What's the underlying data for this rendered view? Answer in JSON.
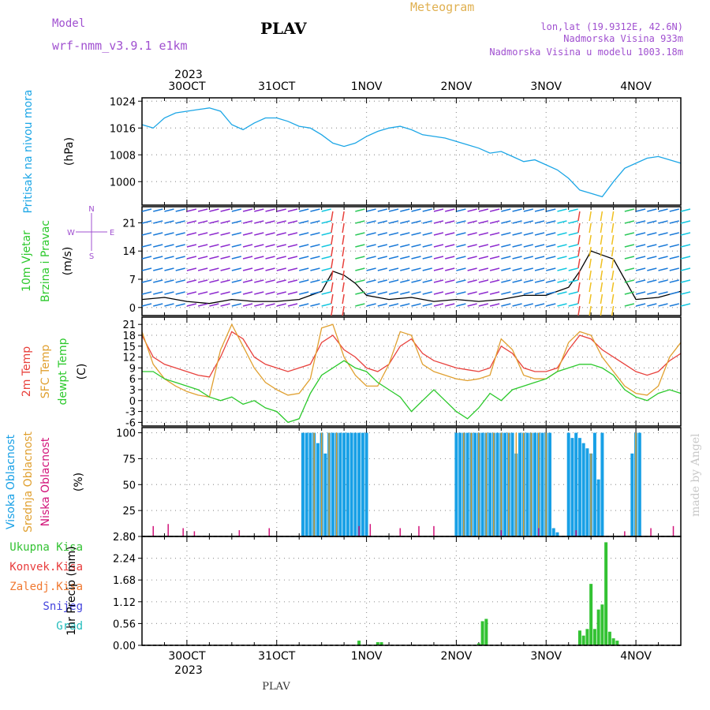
{
  "header": {
    "model_label": "Model",
    "model_name": "wrf-nmm_v3.9.1 e1km",
    "station_title": "PLAV",
    "meteogram_label": "Meteogram",
    "lonlat": "lon,lat (19.9312E, 42.6N)",
    "altitude": "Nadmorska Visina 933m",
    "model_altitude": "Nadmorska Visina u modelu 1003.18m",
    "year_top": "2023",
    "year_bottom": "2023",
    "footer_station": "PLAV",
    "watermark": "made by Angel"
  },
  "colors": {
    "pressure": "#1ca6e6",
    "temp2m": "#e8413c",
    "sfc_temp": "#e0a030",
    "dewpt": "#2cc92c",
    "high_cloud": "#18a0e6",
    "mid_cloud": "#e0a030",
    "low_cloud": "#d2147a",
    "total_precip": "#33c233",
    "conv_precip": "#e83c3c",
    "ice_precip": "#f07830",
    "snow": "#4444dd",
    "hail": "#22bcbc",
    "purple_text": "#a050d0",
    "gold_text": "#e0b050"
  },
  "time_axis": {
    "days": [
      "30OCT",
      "31OCT",
      "1NOV",
      "2NOV",
      "3NOV",
      "4NOV"
    ],
    "day_offsets_hours": [
      0,
      24,
      48,
      72,
      96,
      120
    ],
    "range_hours": [
      -12,
      132
    ]
  },
  "chart_data": [
    {
      "type": "line",
      "panel": "pressure",
      "ylabel_lines": [
        "Pritisak na nivou mora",
        "(hPa)"
      ],
      "yticks": [
        1000,
        1008,
        1016,
        1024
      ],
      "ylim": [
        993,
        1025
      ],
      "grid": true,
      "series": [
        {
          "x": [
            -12,
            -9,
            -6,
            -3,
            0,
            3,
            6,
            9,
            12,
            15,
            18,
            21,
            24,
            27,
            30,
            33,
            36,
            39,
            42,
            45,
            48,
            51,
            54,
            57,
            60,
            63,
            66,
            69,
            72,
            75,
            78,
            81,
            84,
            87,
            90,
            93,
            96,
            99,
            102,
            105,
            108,
            111,
            114,
            117,
            120,
            123,
            126,
            129,
            132
          ],
          "values": [
            1017,
            1016,
            1019,
            1020.5,
            1021,
            1021.5,
            1022,
            1021,
            1017,
            1015.5,
            1017.5,
            1019,
            1019,
            1018,
            1016.5,
            1016,
            1014,
            1011.5,
            1010.5,
            1011.5,
            1013.5,
            1015,
            1016,
            1016.5,
            1015.5,
            1014,
            1013.5,
            1013,
            1012,
            1011,
            1010,
            1008.5,
            1009,
            1007.5,
            1006,
            1006.5,
            1005,
            1003.5,
            1001,
            997.5,
            996.5,
            995.5,
            1000,
            1004,
            1005.5,
            1007,
            1007.5,
            1006.5,
            1005.5
          ]
        }
      ]
    },
    {
      "type": "line",
      "panel": "wind",
      "ylabel_lines": [
        "10m Vjetar",
        "Brzina i Pravac",
        "(m/s)"
      ],
      "compass": [
        "N",
        "E",
        "S",
        "W"
      ],
      "yticks": [
        0,
        7,
        14,
        21
      ],
      "ylim": [
        -2,
        25
      ],
      "grid": true,
      "series": [
        {
          "name": "wind speed",
          "x": [
            -12,
            -6,
            0,
            6,
            12,
            18,
            24,
            30,
            36,
            39,
            42,
            45,
            48,
            54,
            60,
            66,
            72,
            78,
            84,
            90,
            96,
            102,
            105,
            108,
            111,
            114,
            120,
            126,
            132
          ],
          "values": [
            2,
            2.5,
            1.5,
            1,
            2,
            1.5,
            1.5,
            2,
            4,
            9,
            8,
            6,
            3,
            2,
            2.5,
            1.5,
            2,
            1.5,
            2,
            3,
            3,
            5,
            9,
            14,
            13,
            12,
            2,
            2.5,
            4
          ]
        }
      ]
    },
    {
      "type": "line",
      "panel": "temperature",
      "ylabel_lines": [
        "2m Temp",
        "SFC Temp",
        "dewpt Temp",
        "(C)"
      ],
      "yticks": [
        -6,
        -3,
        0,
        3,
        6,
        9,
        12,
        15,
        18,
        21
      ],
      "ylim": [
        -7,
        23
      ],
      "grid": true,
      "series": [
        {
          "name": "2m Temp",
          "x": [
            -12,
            -9,
            -6,
            -3,
            0,
            3,
            6,
            9,
            12,
            15,
            18,
            21,
            24,
            27,
            30,
            33,
            36,
            39,
            42,
            45,
            48,
            51,
            54,
            57,
            60,
            63,
            66,
            69,
            72,
            75,
            78,
            81,
            84,
            87,
            90,
            93,
            96,
            99,
            102,
            105,
            108,
            111,
            114,
            117,
            120,
            123,
            126,
            129,
            132
          ],
          "values": [
            18,
            12,
            10,
            9,
            8,
            7,
            6.5,
            12,
            19,
            17,
            12,
            10,
            9,
            8,
            9,
            10,
            16,
            18,
            14,
            12,
            9,
            8,
            10,
            15,
            17,
            13,
            11,
            10,
            9,
            8.5,
            8,
            9,
            15,
            13,
            9,
            8,
            8,
            9,
            14,
            18,
            17,
            14,
            12,
            10,
            8,
            7,
            8,
            11,
            13
          ]
        },
        {
          "name": "SFC Temp",
          "x": [
            -12,
            -9,
            -6,
            -3,
            0,
            3,
            6,
            9,
            12,
            15,
            18,
            21,
            24,
            27,
            30,
            33,
            36,
            39,
            42,
            45,
            48,
            51,
            54,
            57,
            60,
            63,
            66,
            69,
            72,
            75,
            78,
            81,
            84,
            87,
            90,
            93,
            96,
            99,
            102,
            105,
            108,
            111,
            114,
            117,
            120,
            123,
            126,
            129,
            132
          ],
          "values": [
            19,
            10,
            6,
            4,
            2.5,
            1.5,
            1,
            14,
            21,
            15,
            9,
            5,
            3,
            1.5,
            2,
            6,
            20,
            21,
            12,
            7,
            4,
            4,
            10,
            19,
            18,
            10,
            8,
            7,
            6,
            5.5,
            6,
            7,
            17,
            14,
            7,
            6,
            6,
            8,
            16,
            19,
            18,
            12,
            8,
            4,
            2,
            1.5,
            4,
            12,
            16
          ]
        },
        {
          "name": "dewpt Temp",
          "x": [
            -12,
            -9,
            -6,
            -3,
            0,
            3,
            6,
            9,
            12,
            15,
            18,
            21,
            24,
            27,
            30,
            33,
            36,
            39,
            42,
            45,
            48,
            51,
            54,
            57,
            60,
            63,
            66,
            69,
            72,
            75,
            78,
            81,
            84,
            87,
            90,
            93,
            96,
            99,
            102,
            105,
            108,
            111,
            114,
            117,
            120,
            123,
            126,
            129,
            132
          ],
          "values": [
            8,
            8,
            6,
            5,
            4,
            3,
            1,
            0,
            1,
            -1,
            0,
            -2,
            -3,
            -6,
            -5,
            2,
            7,
            9,
            11,
            9,
            8,
            5,
            3,
            1,
            -3,
            0,
            3,
            0,
            -3,
            -5,
            -2,
            2,
            0,
            3,
            4,
            5,
            6,
            8,
            9,
            10,
            10,
            9,
            7,
            3,
            1,
            0,
            2,
            3,
            2
          ]
        }
      ]
    },
    {
      "type": "bar",
      "panel": "cloud",
      "ylabel_lines": [
        "Visoka Oblacnost",
        "Srednja Oblacnost",
        "Niska Oblacnost",
        "(%)"
      ],
      "yticks": [
        0,
        25,
        50,
        75,
        100
      ],
      "ylim": [
        0,
        105
      ],
      "grid": true,
      "series": [
        {
          "name": "Visoka Oblacnost",
          "x": [
            31,
            32,
            33,
            34,
            35,
            36,
            37,
            38,
            39,
            40,
            41,
            42,
            43,
            44,
            45,
            46,
            47,
            48,
            72,
            73,
            74,
            75,
            76,
            77,
            78,
            79,
            80,
            81,
            82,
            83,
            84,
            85,
            86,
            87,
            88,
            89,
            90,
            91,
            92,
            93,
            94,
            95,
            96,
            97,
            98,
            99,
            102,
            103,
            104,
            105,
            106,
            107,
            108,
            109,
            110,
            111,
            119,
            120,
            121
          ],
          "values": [
            100,
            100,
            100,
            100,
            90,
            100,
            80,
            100,
            100,
            100,
            100,
            100,
            100,
            100,
            100,
            100,
            100,
            100,
            100,
            100,
            100,
            100,
            100,
            100,
            100,
            100,
            100,
            100,
            100,
            100,
            100,
            100,
            100,
            100,
            80,
            100,
            100,
            100,
            100,
            100,
            100,
            100,
            100,
            100,
            8,
            4,
            100,
            95,
            100,
            95,
            90,
            85,
            80,
            100,
            55,
            100,
            80,
            100,
            100
          ]
        },
        {
          "name": "Srednja Oblacnost",
          "x": [
            34,
            36,
            38,
            40,
            74,
            76,
            78,
            80,
            82,
            84,
            86,
            88,
            90,
            92,
            94,
            96,
            108,
            120
          ],
          "values": [
            100,
            100,
            100,
            100,
            100,
            100,
            100,
            100,
            100,
            100,
            100,
            100,
            100,
            100,
            100,
            100,
            80,
            100
          ]
        },
        {
          "name": "Niska Oblacnost",
          "x": [
            -9,
            -5,
            -1,
            2,
            14,
            22,
            46,
            49,
            57,
            62,
            66,
            84,
            94,
            104,
            117,
            124,
            130
          ],
          "values": [
            10,
            12,
            8,
            5,
            6,
            8,
            10,
            12,
            8,
            10,
            10,
            6,
            8,
            6,
            5,
            8,
            10
          ]
        }
      ]
    },
    {
      "type": "bar",
      "panel": "precip",
      "ylabel_lines": [
        "1hr Precip (mm)"
      ],
      "legend": [
        "Ukupna Kisa",
        "Konvek.Kisa",
        "Zaledj.Kisa",
        "Snijeg",
        "Grad"
      ],
      "yticks": [
        0,
        0.56,
        1.12,
        1.68,
        2.24,
        2.8
      ],
      "ylim": [
        0,
        2.8
      ],
      "grid": true,
      "series": [
        {
          "name": "Ukupna Kisa",
          "x": [
            46,
            51,
            52,
            78,
            79,
            80,
            105,
            106,
            107,
            108,
            109,
            110,
            111,
            112,
            113,
            114,
            115
          ],
          "values": [
            0.12,
            0.08,
            0.08,
            0.05,
            0.62,
            0.68,
            0.38,
            0.25,
            0.42,
            1.58,
            0.42,
            0.92,
            1.05,
            2.65,
            0.35,
            0.18,
            0.12
          ]
        }
      ]
    }
  ]
}
